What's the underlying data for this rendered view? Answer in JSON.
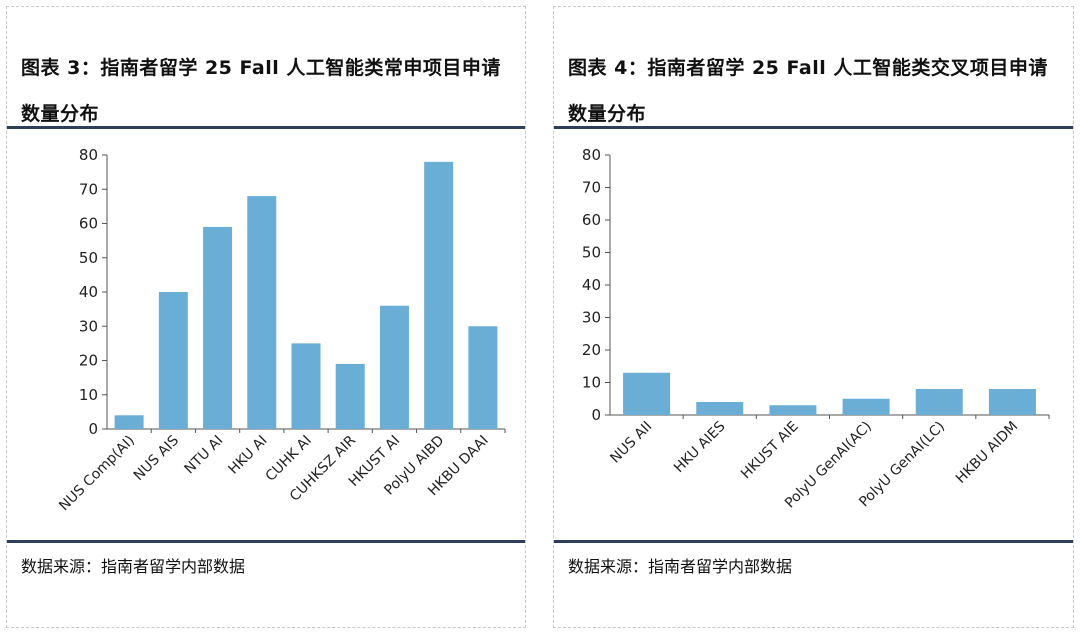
{
  "chart_data": [
    {
      "type": "bar",
      "title": "图表 3：指南者留学 25 Fall 人工智能类常申项目申请数量分布",
      "categories": [
        "NUS Comp(AI)",
        "NUS AIS",
        "NTU AI",
        "HKU AI",
        "CUHK AI",
        "CUHKSZ AIR",
        "HKUST AI",
        "PolyU AIBD",
        "HKBU DAAI"
      ],
      "values": [
        4,
        40,
        59,
        68,
        25,
        19,
        36,
        78,
        30
      ],
      "ylim": [
        0,
        80
      ],
      "yticks": [
        0,
        10,
        20,
        30,
        40,
        50,
        60,
        70,
        80
      ],
      "xlabel": "",
      "ylabel": "",
      "color": "#6aaed6",
      "source": "数据来源：指南者留学内部数据"
    },
    {
      "type": "bar",
      "title": "图表 4：指南者留学 25 Fall 人工智能类交叉项目申请数量分布",
      "categories": [
        "NUS AII",
        "HKU AIES",
        "HKUST AIE",
        "PolyU GenAI(AC)",
        "PolyU GenAI(LC)",
        "HKBU AIDM"
      ],
      "values": [
        13,
        4,
        3,
        5,
        8,
        8
      ],
      "ylim": [
        0,
        80
      ],
      "yticks": [
        0,
        10,
        20,
        30,
        40,
        50,
        60,
        70,
        80
      ],
      "xlabel": "",
      "ylabel": "",
      "color": "#6aaed6",
      "source": "数据来源：指南者留学内部数据"
    }
  ]
}
